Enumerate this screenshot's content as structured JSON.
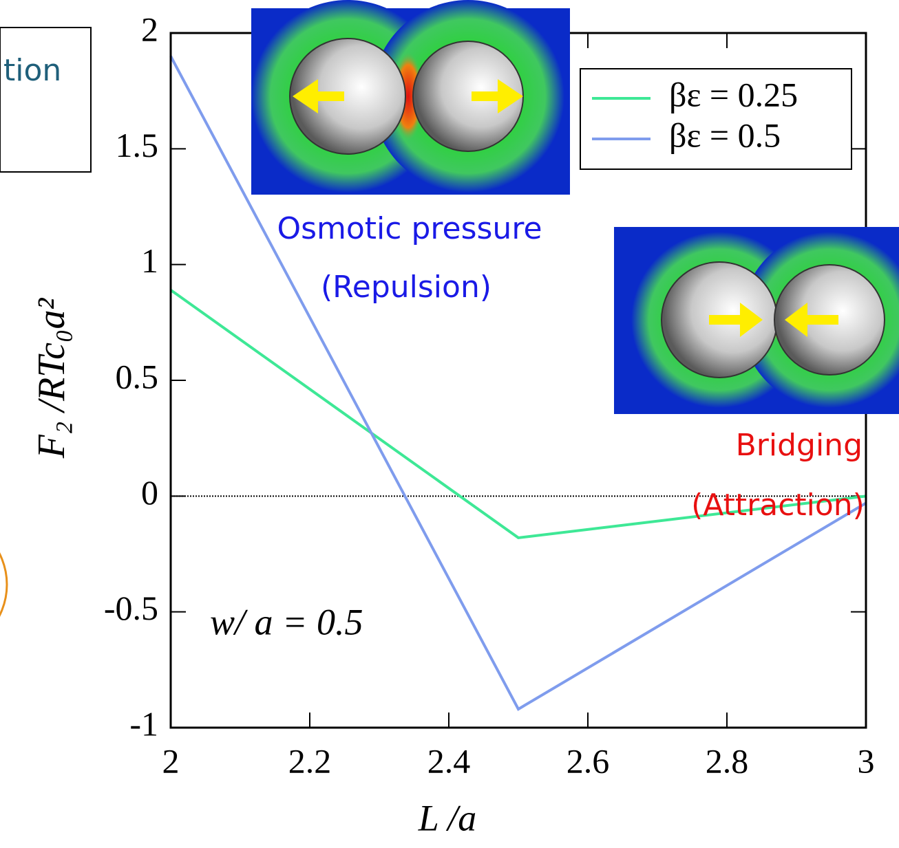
{
  "chart_data": {
    "type": "line",
    "x": [
      2,
      2.5,
      3
    ],
    "series": [
      {
        "name": "βε = 0.25",
        "color": "#3ee896",
        "values": [
          0.89,
          -0.18,
          0.0
        ]
      },
      {
        "name": "βε = 0.5",
        "color": "#7f9ced",
        "values": [
          1.9,
          -0.92,
          -0.03
        ]
      }
    ],
    "xlim": [
      2,
      3
    ],
    "xticks": [
      2,
      2.2,
      2.4,
      2.6,
      2.8,
      3
    ],
    "ylim": [
      -1,
      2
    ],
    "yticks": [
      -1,
      -0.5,
      0,
      0.5,
      1,
      1.5,
      2
    ],
    "xlabel": "L /a",
    "ylabel": "F₂ /RTc₀a²",
    "legend": "upper right",
    "zero_line": true,
    "annotations": {
      "repulsion_title": "Osmotic pressure",
      "repulsion_sub": "(Repulsion)",
      "attraction_title": "Bridging",
      "attraction_sub": "(Attraction)",
      "param": "w/ a = 0.5",
      "side_box": "tion"
    }
  }
}
